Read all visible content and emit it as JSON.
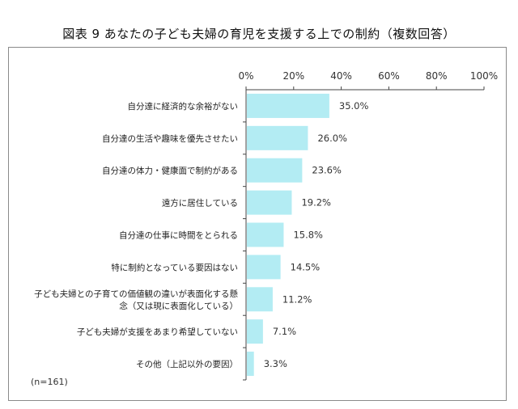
{
  "title": "図表 9 あなたの子ども夫婦の育児を支援する上での制約（複数回答）",
  "note": "(n=161)",
  "colors": {
    "bar": "#b3ecf3",
    "axis": "#444444",
    "frame": "#8a8a8a"
  },
  "chart_data": {
    "type": "bar",
    "orientation": "horizontal",
    "categories": [
      "自分達に経済的な余裕がない",
      "自分達の生活や趣味を優先させたい",
      "自分達の体力・健康面で制約がある",
      "遠方に居住している",
      "自分達の仕事に時間をとられる",
      "特に制約となっている要因はない",
      "子ども夫婦との子育ての価値観の違いが表面化する懸念（又は現に表面化している）",
      "子ども夫婦が支援をあまり希望していない",
      "その他（上記以外の要因）"
    ],
    "category_lines": [
      [
        "自分達に経済的な余裕がない"
      ],
      [
        "自分達の生活や趣味を優先させたい"
      ],
      [
        "自分達の体力・健康面で制約がある"
      ],
      [
        "遠方に居住している"
      ],
      [
        "自分達の仕事に時間をとられる"
      ],
      [
        "特に制約となっている要因はない"
      ],
      [
        "子ども夫婦との子育ての価値観の違いが表面化する懸",
        "念（又は現に表面化している）"
      ],
      [
        "子ども夫婦が支援をあまり希望していない"
      ],
      [
        "その他（上記以外の要因）"
      ]
    ],
    "values": [
      35.0,
      26.0,
      23.6,
      19.2,
      15.8,
      14.5,
      11.2,
      7.1,
      3.3
    ],
    "value_labels": [
      "35.0%",
      "26.0%",
      "23.6%",
      "19.2%",
      "15.8%",
      "14.5%",
      "11.2%",
      "7.1%",
      "3.3%"
    ],
    "xlim": [
      0,
      100
    ],
    "xticks": [
      "0%",
      "20%",
      "40%",
      "60%",
      "80%",
      "100%"
    ],
    "grid": false,
    "legend": "none"
  }
}
